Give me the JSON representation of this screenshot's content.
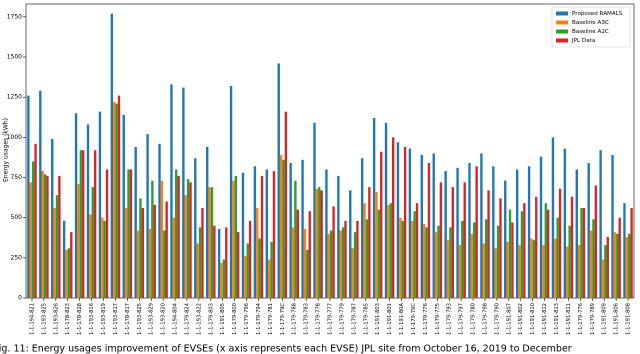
{
  "chart_data": {
    "type": "bar",
    "ylabel": "Energy usages (kWh)",
    "caption": "Fig. 11: Energy usages improvement of EVSEs (x axis represents each EVSE) JPL site from October 16, 2019 to December",
    "categories": [
      "1-1-194-821",
      "1-1-193-825",
      "1-1-193-826",
      "1-1-178-823",
      "1-1-178-828",
      "1-1-193-816",
      "1-1-193-819",
      "1-1-193-817",
      "1-1-178-817",
      "1-1-193-825",
      "1-1-193-829",
      "1-1-193-820",
      "1-1-194-804",
      "1-1-179-824",
      "1-1-193-822",
      "1-1-179-803",
      "1-1-191-805",
      "1-1-179-800",
      "1-1-179-796",
      "1-1-179-794",
      "1-1-179-781",
      "1-1-179-79C",
      "1-1-179-788",
      "1-1-179-783",
      "1-1-179-778",
      "1-1-179-777",
      "1-1-179-779",
      "1-1-179-787",
      "1-1-179-785",
      "1-1-191-803",
      "1-1-191-801",
      "1-1-191-80A",
      "1-1-179-79C",
      "1-1-179-776",
      "1-1-179-775",
      "1-1-179-793",
      "1-1-179-797",
      "1-1-179-780",
      "1-1-179-798",
      "1-1-179-790",
      "1-1-191-807",
      "1-1-191-802",
      "1-1-191-810",
      "1-1-191-812",
      "1-1-191-813",
      "1-1-191-811",
      "1-1-179-776",
      "1-1-179-789",
      "1-1-191-809",
      "1-1-191-806",
      "1-1-191-808"
    ],
    "series": [
      {
        "name": "Proposed RAMALS",
        "color": "#1f77b4",
        "values": [
          1260,
          1290,
          990,
          480,
          1150,
          1080,
          1160,
          1770,
          1140,
          940,
          1020,
          960,
          1330,
          1310,
          870,
          940,
          430,
          1320,
          780,
          820,
          800,
          1460,
          840,
          860,
          1090,
          800,
          760,
          670,
          870,
          1120,
          1090,
          970,
          930,
          890,
          900,
          790,
          810,
          840,
          900,
          820,
          730,
          800,
          820,
          880,
          1000,
          930,
          800,
          840,
          920,
          890,
          590
        ]
      },
      {
        "name": "Baseline A3C",
        "color": "#ff7f0e",
        "values": [
          720,
          790,
          560,
          300,
          710,
          520,
          500,
          1220,
          560,
          420,
          430,
          730,
          500,
          640,
          340,
          690,
          220,
          730,
          260,
          560,
          240,
          890,
          440,
          430,
          680,
          400,
          420,
          310,
          590,
          660,
          580,
          500,
          480,
          460,
          410,
          360,
          330,
          400,
          340,
          310,
          350,
          330,
          370,
          330,
          370,
          320,
          330,
          420,
          240,
          410,
          380
        ]
      },
      {
        "name": "Baseline A2C",
        "color": "#2ca02c",
        "values": [
          850,
          770,
          640,
          310,
          920,
          690,
          480,
          1210,
          800,
          620,
          730,
          420,
          800,
          740,
          440,
          690,
          240,
          760,
          340,
          370,
          350,
          860,
          730,
          300,
          690,
          420,
          440,
          410,
          490,
          550,
          590,
          480,
          540,
          440,
          450,
          440,
          480,
          470,
          490,
          450,
          550,
          540,
          360,
          590,
          500,
          450,
          560,
          490,
          330,
          400,
          400
        ]
      },
      {
        "name": "JPL Data",
        "color": "#d62728",
        "values": [
          960,
          760,
          760,
          410,
          920,
          920,
          800,
          1260,
          800,
          560,
          580,
          600,
          760,
          720,
          560,
          450,
          440,
          410,
          480,
          760,
          790,
          1160,
          550,
          540,
          670,
          570,
          480,
          480,
          690,
          910,
          1000,
          940,
          590,
          840,
          720,
          690,
          720,
          820,
          670,
          620,
          470,
          590,
          630,
          550,
          680,
          630,
          560,
          700,
          380,
          500,
          560
        ]
      }
    ],
    "ylim": [
      0,
      1830
    ],
    "yticks": [
      0,
      250,
      500,
      750,
      1000,
      1250,
      1500,
      1750
    ],
    "grid": false,
    "legend": "upper right"
  }
}
